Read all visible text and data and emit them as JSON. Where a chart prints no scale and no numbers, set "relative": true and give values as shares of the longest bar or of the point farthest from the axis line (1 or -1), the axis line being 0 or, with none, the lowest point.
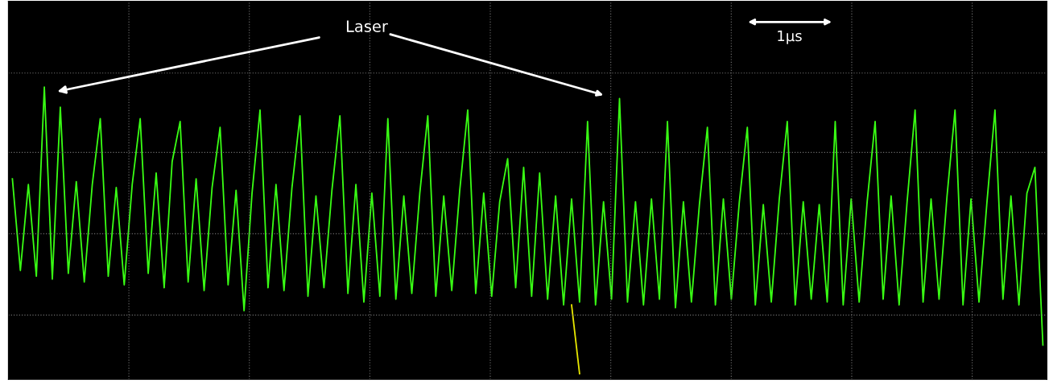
{
  "chart_data": {
    "type": "line",
    "relative": true,
    "grid": true,
    "legend": false,
    "categories": [
      null,
      null,
      null,
      null,
      null,
      null,
      null,
      null,
      null,
      null,
      null,
      null,
      null,
      null,
      null,
      null,
      null,
      null,
      null,
      null,
      null,
      null,
      null,
      null,
      null,
      null,
      null,
      null,
      null,
      null,
      null,
      null,
      null,
      null,
      null,
      null,
      null,
      null,
      null,
      null,
      null,
      null,
      null,
      null,
      null,
      null,
      null,
      null,
      null,
      null,
      null,
      null,
      null,
      null,
      null,
      null,
      null,
      null,
      null,
      null,
      null,
      null,
      null,
      null,
      null,
      null,
      null,
      null,
      null,
      null,
      null,
      null,
      null,
      null,
      null,
      null,
      null,
      null,
      null,
      null,
      null,
      null,
      null,
      null,
      null,
      null,
      null,
      null,
      null,
      null,
      null,
      null,
      null,
      null,
      null,
      null,
      null,
      null,
      null,
      null,
      null,
      null,
      null,
      null,
      null,
      null,
      null,
      null,
      null,
      null,
      null,
      null,
      null,
      null,
      null,
      null,
      null,
      null,
      null,
      null,
      null,
      null,
      null,
      null,
      null,
      null,
      null,
      null,
      null,
      null
    ],
    "series": [
      {
        "color": "#39ff14",
        "values": [
          0.68,
          0.36,
          0.66,
          0.34,
          1.0,
          0.33,
          0.93,
          0.35,
          0.67,
          0.32,
          0.66,
          0.89,
          0.34,
          0.65,
          0.31,
          0.66,
          0.89,
          0.35,
          0.7,
          0.3,
          0.74,
          0.88,
          0.32,
          0.68,
          0.29,
          0.65,
          0.86,
          0.31,
          0.64,
          0.22,
          0.63,
          0.92,
          0.3,
          0.66,
          0.29,
          0.65,
          0.9,
          0.27,
          0.62,
          0.3,
          0.64,
          0.9,
          0.28,
          0.66,
          0.25,
          0.63,
          0.27,
          0.89,
          0.26,
          0.62,
          0.28,
          0.63,
          0.9,
          0.27,
          0.62,
          0.29,
          0.64,
          0.92,
          0.28,
          0.63,
          0.27,
          0.6,
          0.75,
          0.3,
          0.72,
          0.27,
          0.7,
          0.26,
          0.62,
          0.24,
          0.61,
          0.25,
          0.88,
          0.24,
          0.6,
          0.26,
          0.96,
          0.25,
          0.6,
          0.24,
          0.61,
          0.26,
          0.88,
          0.23,
          0.6,
          0.25,
          0.59,
          0.86,
          0.24,
          0.61,
          0.26,
          0.6,
          0.86,
          0.24,
          0.59,
          0.25,
          0.61,
          0.88,
          0.24,
          0.6,
          0.26,
          0.59,
          0.25,
          0.88,
          0.24,
          0.61,
          0.25,
          0.6,
          0.88,
          0.26,
          0.62,
          0.24,
          0.6,
          0.92,
          0.25,
          0.61,
          0.26,
          0.62,
          0.92,
          0.24,
          0.61,
          0.25,
          0.6,
          0.92,
          0.26,
          0.62,
          0.24,
          0.63,
          0.72,
          0.1
        ]
      },
      {
        "color": "#e8e800",
        "values": [
          null,
          null,
          null,
          null,
          null,
          null,
          null,
          null,
          null,
          null,
          null,
          null,
          null,
          null,
          null,
          null,
          null,
          null,
          null,
          null,
          null,
          null,
          null,
          null,
          null,
          null,
          null,
          null,
          null,
          null,
          null,
          null,
          null,
          null,
          null,
          null,
          null,
          null,
          null,
          null,
          null,
          null,
          null,
          null,
          null,
          null,
          null,
          null,
          null,
          null,
          null,
          null,
          null,
          null,
          null,
          null,
          null,
          null,
          null,
          null,
          null,
          null,
          null,
          null,
          null,
          null,
          null,
          null,
          null,
          null,
          0.24,
          0.0,
          null,
          null,
          null,
          null,
          null,
          null,
          null,
          null,
          null,
          null,
          null,
          null,
          null,
          null,
          null,
          null,
          null,
          null,
          null,
          null,
          null,
          null,
          null,
          null,
          null,
          null,
          null,
          null,
          null,
          null,
          null,
          null,
          null,
          null,
          null,
          null,
          null,
          null,
          null,
          null,
          null,
          null,
          null,
          null,
          null,
          null,
          null,
          null,
          null,
          null,
          null,
          null,
          null,
          null,
          null,
          null,
          null,
          null
        ]
      }
    ],
    "annotations": [
      "Laser",
      "1µs"
    ]
  }
}
